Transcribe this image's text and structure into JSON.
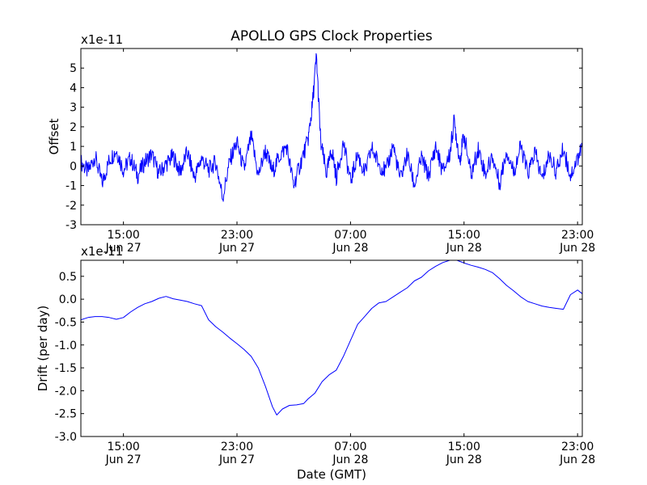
{
  "title": "APOLLO GPS Clock Properties",
  "colors": {
    "line": "#0000ff",
    "axes": "#000000",
    "background": "#ffffff"
  },
  "chart_data": [
    {
      "type": "line",
      "title": "APOLLO GPS Clock Properties",
      "ylabel": "Offset",
      "multiplier_label": "x1e-11",
      "xlabel": "",
      "x_ticks": [
        {
          "hour": 15,
          "time": "15:00",
          "date": "Jun 27"
        },
        {
          "hour": 23,
          "time": "23:00",
          "date": "Jun 27"
        },
        {
          "hour": 31,
          "time": "07:00",
          "date": "Jun 28"
        },
        {
          "hour": 39,
          "time": "15:00",
          "date": "Jun 28"
        },
        {
          "hour": 47,
          "time": "23:00",
          "date": "Jun 28"
        }
      ],
      "xlim": [
        "2000-06-27 12:00",
        "2000-06-28 23:20"
      ],
      "y_ticks": [
        5,
        4,
        3,
        2,
        1,
        0,
        -1,
        -2,
        -3
      ],
      "y_tick_labels": [
        "5",
        "4",
        "3",
        "2",
        "1",
        "0",
        "-1",
        "-2",
        "-3"
      ],
      "ylim": [
        -3,
        6
      ],
      "grid": false,
      "series": [
        {
          "values": [
            [
              12.0,
              0.2
            ],
            [
              12.5,
              -0.3
            ],
            [
              13.0,
              0.5
            ],
            [
              13.5,
              -0.9
            ],
            [
              14.0,
              0.3
            ],
            [
              14.5,
              0.8
            ],
            [
              15.0,
              -0.2
            ],
            [
              15.5,
              0.4
            ],
            [
              16.0,
              -0.5
            ],
            [
              16.5,
              0.2
            ],
            [
              17.0,
              0.6
            ],
            [
              17.5,
              -0.4
            ],
            [
              18.0,
              0.1
            ],
            [
              18.5,
              0.5
            ],
            [
              19.0,
              -0.3
            ],
            [
              19.5,
              0.7
            ],
            [
              20.0,
              -0.6
            ],
            [
              20.5,
              0.4
            ],
            [
              21.0,
              -0.2
            ],
            [
              21.5,
              0.2
            ],
            [
              22.0,
              -1.6
            ],
            [
              22.5,
              0.3
            ],
            [
              23.0,
              1.2
            ],
            [
              23.5,
              -0.2
            ],
            [
              24.0,
              1.5
            ],
            [
              24.5,
              -0.5
            ],
            [
              25.0,
              0.8
            ],
            [
              25.5,
              -0.3
            ],
            [
              26.0,
              0.5
            ],
            [
              26.5,
              1.0
            ],
            [
              27.0,
              -1.0
            ],
            [
              27.5,
              0.2
            ],
            [
              28.0,
              1.3
            ],
            [
              28.3,
              3.0
            ],
            [
              28.6,
              5.6
            ],
            [
              28.9,
              1.2
            ],
            [
              29.3,
              -0.4
            ],
            [
              29.7,
              0.8
            ],
            [
              30.0,
              -0.6
            ],
            [
              30.5,
              1.2
            ],
            [
              31.0,
              -0.8
            ],
            [
              31.5,
              0.6
            ],
            [
              32.0,
              -0.4
            ],
            [
              32.5,
              0.9
            ],
            [
              33.0,
              0.1
            ],
            [
              33.5,
              -0.3
            ],
            [
              34.0,
              1.1
            ],
            [
              34.5,
              -0.7
            ],
            [
              35.0,
              0.6
            ],
            [
              35.5,
              -1.0
            ],
            [
              36.0,
              0.4
            ],
            [
              36.5,
              -0.5
            ],
            [
              37.0,
              1.0
            ],
            [
              37.5,
              -0.3
            ],
            [
              38.0,
              0.6
            ],
            [
              38.3,
              2.3
            ],
            [
              38.7,
              0.3
            ],
            [
              39.0,
              1.6
            ],
            [
              39.5,
              -0.5
            ],
            [
              40.0,
              0.9
            ],
            [
              40.5,
              -0.4
            ],
            [
              41.0,
              0.5
            ],
            [
              41.5,
              -0.9
            ],
            [
              42.0,
              0.8
            ],
            [
              42.5,
              -0.3
            ],
            [
              43.0,
              1.0
            ],
            [
              43.5,
              -0.4
            ],
            [
              44.0,
              0.7
            ],
            [
              44.5,
              -0.7
            ],
            [
              45.0,
              0.6
            ],
            [
              45.5,
              -0.3
            ],
            [
              46.0,
              0.9
            ],
            [
              46.5,
              -0.5
            ],
            [
              47.0,
              0.4
            ],
            [
              47.33,
              1.0
            ]
          ]
        }
      ]
    },
    {
      "type": "line",
      "title": "",
      "ylabel": "Drift (per day)",
      "multiplier_label": "x1e-11",
      "xlabel": "Date (GMT)",
      "x_ticks": [
        {
          "hour": 15,
          "time": "15:00",
          "date": "Jun 27"
        },
        {
          "hour": 23,
          "time": "23:00",
          "date": "Jun 27"
        },
        {
          "hour": 31,
          "time": "07:00",
          "date": "Jun 28"
        },
        {
          "hour": 39,
          "time": "15:00",
          "date": "Jun 28"
        },
        {
          "hour": 47,
          "time": "23:00",
          "date": "Jun 28"
        }
      ],
      "xlim": [
        "2000-06-27 12:00",
        "2000-06-28 23:20"
      ],
      "y_ticks": [
        0.5,
        0.0,
        -0.5,
        -1.0,
        -1.5,
        -2.0,
        -2.5,
        -3.0
      ],
      "y_tick_labels": [
        "0.5",
        "0.0",
        "-0.5",
        "-1.0",
        "-1.5",
        "-2.0",
        "-2.5",
        "-3.0"
      ],
      "ylim": [
        -3.0,
        0.85
      ],
      "grid": false,
      "series": [
        {
          "values": [
            [
              12.0,
              -0.45
            ],
            [
              12.5,
              -0.4
            ],
            [
              13.0,
              -0.38
            ],
            [
              13.5,
              -0.38
            ],
            [
              14.0,
              -0.4
            ],
            [
              14.5,
              -0.44
            ],
            [
              15.0,
              -0.4
            ],
            [
              15.5,
              -0.28
            ],
            [
              16.0,
              -0.18
            ],
            [
              16.5,
              -0.1
            ],
            [
              17.0,
              -0.05
            ],
            [
              17.5,
              0.02
            ],
            [
              18.0,
              0.06
            ],
            [
              18.5,
              0.01
            ],
            [
              19.0,
              -0.02
            ],
            [
              19.5,
              -0.05
            ],
            [
              20.0,
              -0.1
            ],
            [
              20.5,
              -0.14
            ],
            [
              21.0,
              -0.45
            ],
            [
              21.5,
              -0.6
            ],
            [
              22.0,
              -0.72
            ],
            [
              22.5,
              -0.85
            ],
            [
              23.0,
              -0.97
            ],
            [
              23.5,
              -1.1
            ],
            [
              24.0,
              -1.25
            ],
            [
              24.5,
              -1.5
            ],
            [
              25.0,
              -1.9
            ],
            [
              25.5,
              -2.35
            ],
            [
              25.8,
              -2.53
            ],
            [
              26.2,
              -2.4
            ],
            [
              26.7,
              -2.32
            ],
            [
              27.2,
              -2.31
            ],
            [
              27.7,
              -2.28
            ],
            [
              28.0,
              -2.18
            ],
            [
              28.5,
              -2.05
            ],
            [
              29.0,
              -1.8
            ],
            [
              29.5,
              -1.65
            ],
            [
              30.0,
              -1.55
            ],
            [
              30.5,
              -1.25
            ],
            [
              31.0,
              -0.9
            ],
            [
              31.5,
              -0.55
            ],
            [
              32.0,
              -0.38
            ],
            [
              32.5,
              -0.2
            ],
            [
              33.0,
              -0.08
            ],
            [
              33.5,
              -0.05
            ],
            [
              34.0,
              0.05
            ],
            [
              34.5,
              0.15
            ],
            [
              35.0,
              0.25
            ],
            [
              35.5,
              0.4
            ],
            [
              36.0,
              0.48
            ],
            [
              36.5,
              0.62
            ],
            [
              37.0,
              0.72
            ],
            [
              37.5,
              0.8
            ],
            [
              38.0,
              0.85
            ],
            [
              38.5,
              0.85
            ],
            [
              39.0,
              0.79
            ],
            [
              39.5,
              0.74
            ],
            [
              40.0,
              0.7
            ],
            [
              40.5,
              0.65
            ],
            [
              41.0,
              0.58
            ],
            [
              41.5,
              0.45
            ],
            [
              42.0,
              0.3
            ],
            [
              42.5,
              0.18
            ],
            [
              43.0,
              0.05
            ],
            [
              43.5,
              -0.05
            ],
            [
              44.0,
              -0.1
            ],
            [
              44.5,
              -0.15
            ],
            [
              45.0,
              -0.18
            ],
            [
              45.5,
              -0.2
            ],
            [
              46.0,
              -0.22
            ],
            [
              46.5,
              0.1
            ],
            [
              47.0,
              0.2
            ],
            [
              47.33,
              0.12
            ]
          ]
        }
      ]
    }
  ]
}
